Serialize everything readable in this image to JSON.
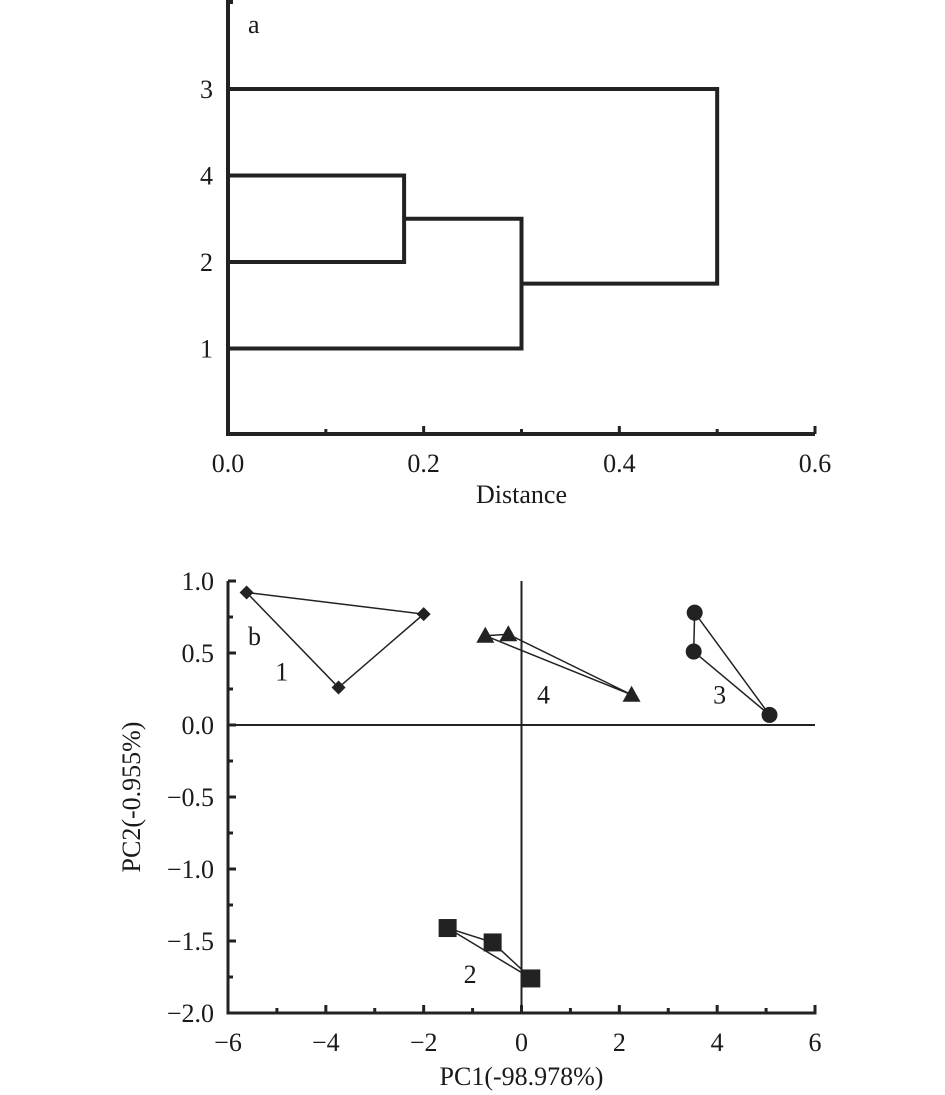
{
  "chart_data": [
    {
      "type": "dendrogram",
      "panel_label": "a",
      "xlabel": "Distance",
      "xlim": [
        0,
        0.6
      ],
      "xticks": [
        "0.0",
        "0.2",
        "0.4",
        "0.6"
      ],
      "xtick_values": [
        0,
        0.2,
        0.4,
        0.6
      ],
      "leaves": [
        "3",
        "4",
        "2",
        "1"
      ],
      "merges": [
        {
          "a": "4",
          "b": "2",
          "distance": 0.18
        },
        {
          "a": "4+2",
          "b": "1",
          "distance": 0.3
        },
        {
          "a": "4+2+1",
          "b": "3",
          "distance": 0.5
        }
      ]
    },
    {
      "type": "scatter",
      "panel_label": "b",
      "xlabel": "PC1(-98.978%)",
      "ylabel": "PC2(-0.955%)",
      "xlim": [
        -6,
        6
      ],
      "ylim": [
        -2.0,
        1.0
      ],
      "xticks": [
        "−6",
        "−4",
        "−2",
        "0",
        "2",
        "4",
        "6"
      ],
      "xtick_values": [
        -6,
        -4,
        -2,
        0,
        2,
        4,
        6
      ],
      "yticks": [
        "1.0",
        "0.5",
        "0.0",
        "−0.5",
        "−1.0",
        "−1.5",
        "−2.0"
      ],
      "ytick_values": [
        1.0,
        0.5,
        0.0,
        -0.5,
        -1.0,
        -1.5,
        -2.0
      ],
      "series": [
        {
          "name": "1",
          "marker": "diamond",
          "x": [
            -5.62,
            -2.0,
            -3.74
          ],
          "y": [
            0.92,
            0.77,
            0.26
          ],
          "label_pos": [
            -4.9,
            0.31
          ]
        },
        {
          "name": "4",
          "marker": "triangle",
          "x": [
            -0.74,
            -0.27,
            2.25
          ],
          "y": [
            0.62,
            0.63,
            0.21
          ],
          "label_pos": [
            0.45,
            0.15
          ]
        },
        {
          "name": "3",
          "marker": "circle",
          "x": [
            3.54,
            3.52,
            5.07
          ],
          "y": [
            0.78,
            0.51,
            0.07
          ],
          "label_pos": [
            4.05,
            0.15
          ]
        },
        {
          "name": "2",
          "marker": "square",
          "x": [
            -1.51,
            -0.59,
            0.2
          ],
          "y": [
            -1.41,
            -1.51,
            -1.76
          ],
          "label_pos": [
            -1.05,
            -1.79
          ]
        }
      ]
    }
  ]
}
